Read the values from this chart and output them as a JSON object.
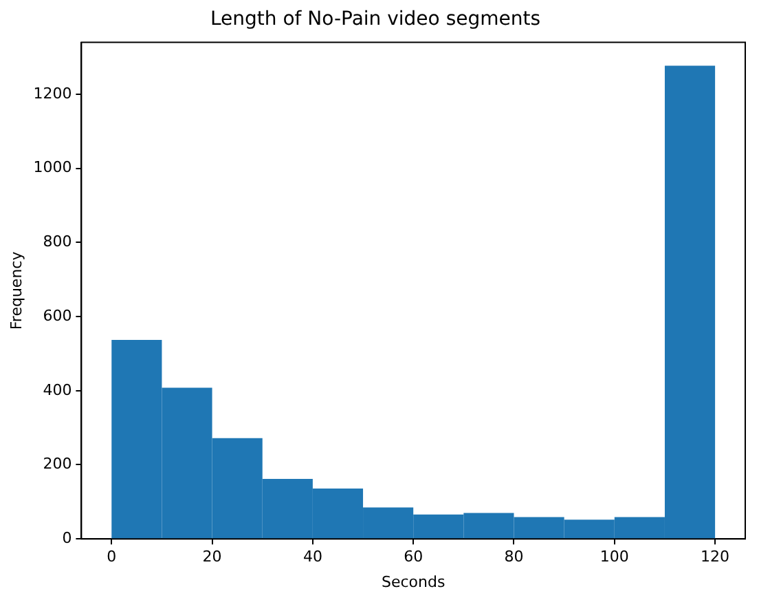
{
  "chart_data": {
    "type": "histogram",
    "title": "Length of No-Pain video segments",
    "xlabel": "Seconds",
    "ylabel": "Frequency",
    "bins": [
      0,
      10,
      20,
      30,
      40,
      50,
      60,
      70,
      80,
      90,
      100,
      110,
      120
    ],
    "values": [
      537,
      408,
      272,
      162,
      136,
      85,
      66,
      70,
      59,
      52,
      59,
      1277
    ],
    "color": "#1f77b4",
    "xlim": [
      -6,
      126
    ],
    "xticks": [
      0,
      20,
      40,
      60,
      80,
      100,
      120
    ],
    "ylim": [
      0,
      1340
    ],
    "yticks": [
      0,
      200,
      400,
      600,
      800,
      1000,
      1200
    ],
    "grid": false,
    "legend": false
  }
}
